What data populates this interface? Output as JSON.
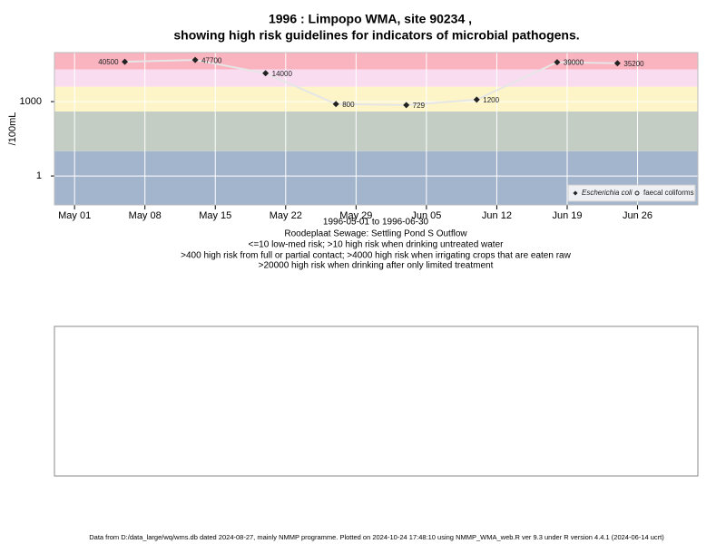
{
  "chart_data": {
    "type": "line",
    "title": "1996 : Limpopo WMA, site 90234 ,",
    "subtitle": "showing high risk guidelines for indicators of microbial pathogens.",
    "x_label": "1996-05-01 to 1996-06-30",
    "site": "Roodeplaat Sewage: Settling Pond S Outflow",
    "guidelines": [
      "<=10 low-med risk; >10 high risk when drinking untreated water",
      ">400 high risk from full or partial contact; >4000 high risk when irrigating crops that are eaten raw",
      ">20000 high risk when drinking after only limited treatment"
    ],
    "y_label": "/100mL",
    "log_scale": true,
    "x": [
      "1996-05-06",
      "1996-05-13",
      "1996-05-20",
      "1996-05-27",
      "1996-06-03",
      "1996-06-10",
      "1996-06-18",
      "1996-06-24"
    ],
    "series": [
      {
        "name": "Escherichia coli",
        "color": "#222222",
        "values": [
          40500,
          47700,
          14000,
          800,
          729,
          1200,
          39000,
          35200
        ]
      },
      {
        "name": "faecal coliforms",
        "color": "#222222",
        "values": [
          null,
          null,
          null,
          null,
          null,
          null,
          null,
          null
        ]
      }
    ],
    "line_color": "#e6e6e6",
    "bands": [
      {
        "from": 0.068,
        "to": 10,
        "color": "#a3b5cc"
      },
      {
        "from": 10,
        "to": 400,
        "color": "#c3cdc3"
      },
      {
        "from": 400,
        "to": 4000,
        "color": "#fdf5c8"
      },
      {
        "from": 4000,
        "to": 20000,
        "color": "#fadcf0"
      },
      {
        "from": 20000,
        "to": 95000,
        "color": "#f9b4c0"
      }
    ],
    "xlim": [
      "1996-04-29",
      "1996-07-02"
    ],
    "xticks": [
      {
        "value": "1996-05-01",
        "label": "May 01"
      },
      {
        "value": "1996-05-08",
        "label": "May 08"
      },
      {
        "value": "1996-05-15",
        "label": "May 15"
      },
      {
        "value": "1996-05-22",
        "label": "May 22"
      },
      {
        "value": "1996-05-29",
        "label": "May 29"
      },
      {
        "value": "1996-06-05",
        "label": "Jun 05"
      },
      {
        "value": "1996-06-12",
        "label": "Jun 12"
      },
      {
        "value": "1996-06-19",
        "label": "Jun 19"
      },
      {
        "value": "1996-06-26",
        "label": "Jun 26"
      }
    ],
    "ylim": [
      0.068,
      95000
    ],
    "yticks": [
      1,
      1000
    ],
    "grid": true,
    "legend": "bottom-right",
    "footer": "Data from D:/data_large/wq/wms.db dated 2024-08-27, mainly NMMP programme. Plotted on 2024-10-24 17:48:10 using NMMP_WMA_web.R ver 9.3 under R version 4.4.1 (2024-06-14 ucrt)"
  }
}
